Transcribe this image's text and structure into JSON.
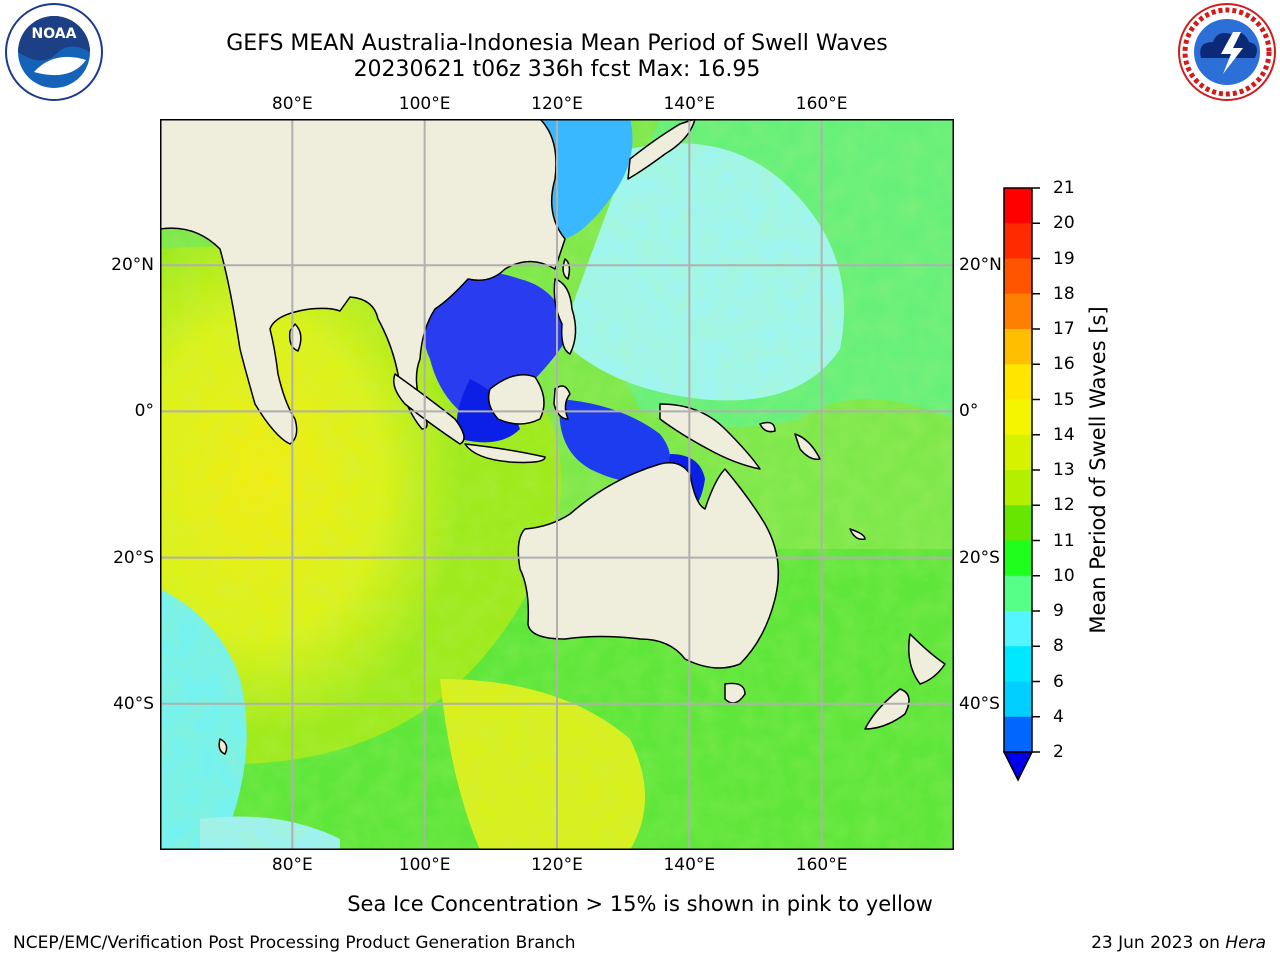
{
  "header": {
    "title_line1": "GEFS MEAN Australia-Indonesia Mean Period of Swell Waves",
    "title_line2": "20230621 t06z 336h fcst   Max: 16.95"
  },
  "logos": {
    "noaa": {
      "text": "NOAA",
      "icon": "noaa-logo-icon",
      "ring_text": "NATIONAL OCEANIC AND ATMOSPHERIC ADMINISTRATION · U.S. DEPARTMENT OF COMMERCE"
    },
    "nws": {
      "icon": "nws-logo-icon",
      "ring_text": "NATIONAL WEATHER SERVICE"
    }
  },
  "map": {
    "lon_labels": [
      "80°E",
      "100°E",
      "120°E",
      "140°E",
      "160°E"
    ],
    "lat_labels_left": [
      "20°N",
      "0°",
      "20°S",
      "40°S"
    ],
    "lat_labels_right": [
      "20°N",
      "0°",
      "20°S",
      "40°S"
    ],
    "lon_range": [
      60,
      180
    ],
    "lat_range": [
      -60,
      40
    ],
    "gridlines": true,
    "colors": {
      "land": "#efeddc",
      "grid": "#b0b0b0"
    }
  },
  "colorbar": {
    "label": "Mean Period of Swell Waves [s]",
    "ticks": [
      "21",
      "20",
      "19",
      "18",
      "17",
      "16",
      "15",
      "14",
      "13",
      "12",
      "11",
      "10",
      "9",
      "8",
      "6",
      "4",
      "2"
    ],
    "colors_top_to_bottom": [
      "#ff0000",
      "#ff2a00",
      "#ff5500",
      "#ff7f00",
      "#ff9f00",
      "#ffbf00",
      "#ffe600",
      "#f5f500",
      "#d7f200",
      "#b4ef00",
      "#66e600",
      "#1eff1e",
      "#55ff88",
      "#99ffee",
      "#55f5ff",
      "#00e8ff",
      "#00cfff",
      "#0066ff"
    ],
    "extend_color": "#0000ee"
  },
  "footer": {
    "sea_ice_note": "Sea Ice Concentration > 15% is shown in pink to yellow",
    "branch": "NCEP/EMC/Verification Post Processing Product Generation Branch",
    "date": "23 Jun 2023 on",
    "machine": "Hera"
  }
}
